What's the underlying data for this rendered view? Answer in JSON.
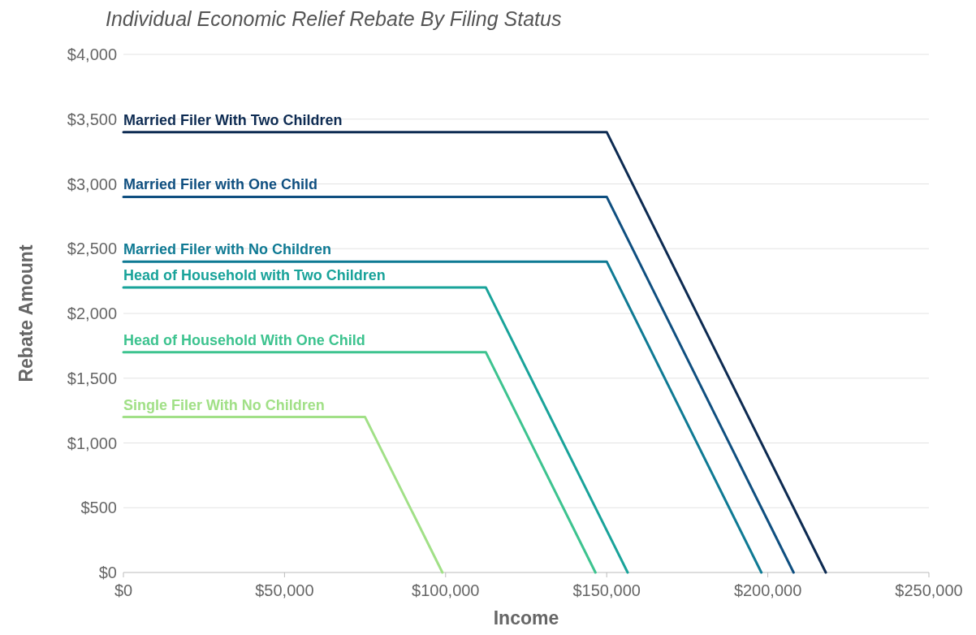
{
  "chart_data": {
    "type": "line",
    "title": "Individual Economic Relief Rebate By Filing Status",
    "xlabel": "Income",
    "ylabel": "Rebate Amount",
    "xlim": [
      0,
      250000
    ],
    "ylim": [
      0,
      4000
    ],
    "xticks": [
      {
        "value": 0,
        "label": "$0"
      },
      {
        "value": 50000,
        "label": "$50,000"
      },
      {
        "value": 100000,
        "label": "$100,000"
      },
      {
        "value": 150000,
        "label": "$150,000"
      },
      {
        "value": 200000,
        "label": "$200,000"
      },
      {
        "value": 250000,
        "label": "$250,000"
      }
    ],
    "yticks": [
      {
        "value": 0,
        "label": "$0"
      },
      {
        "value": 500,
        "label": "$500"
      },
      {
        "value": 1000,
        "label": "$1,000"
      },
      {
        "value": 1500,
        "label": "$1,500"
      },
      {
        "value": 2000,
        "label": "$2,000"
      },
      {
        "value": 2500,
        "label": "$2,500"
      },
      {
        "value": 3000,
        "label": "$3,000"
      },
      {
        "value": 3500,
        "label": "$3,500"
      },
      {
        "value": 4000,
        "label": "$4,000"
      }
    ],
    "grid": "y",
    "marker": "none",
    "line_style": "solid",
    "series": [
      {
        "name": "Married Filer With Two Children",
        "color": "#0d2b52",
        "x": [
          0,
          150000,
          218000
        ],
        "values": [
          3400,
          3400,
          0
        ]
      },
      {
        "name": "Married Filer with One Child",
        "color": "#0f4f80",
        "x": [
          0,
          150000,
          208000
        ],
        "values": [
          2900,
          2900,
          0
        ]
      },
      {
        "name": "Married Filer with No Children",
        "color": "#0f7a94",
        "x": [
          0,
          150000,
          198000
        ],
        "values": [
          2400,
          2400,
          0
        ]
      },
      {
        "name": "Head of Household with Two Children",
        "color": "#19a39a",
        "x": [
          0,
          112500,
          156500
        ],
        "values": [
          2200,
          2200,
          0
        ]
      },
      {
        "name": "Head of Household With One Child",
        "color": "#3dc38f",
        "x": [
          0,
          112500,
          146500
        ],
        "values": [
          1700,
          1700,
          0
        ]
      },
      {
        "name": "Single Filer With No Children",
        "color": "#a1e087",
        "x": [
          0,
          75000,
          99000
        ],
        "values": [
          1200,
          1200,
          0
        ]
      }
    ]
  }
}
